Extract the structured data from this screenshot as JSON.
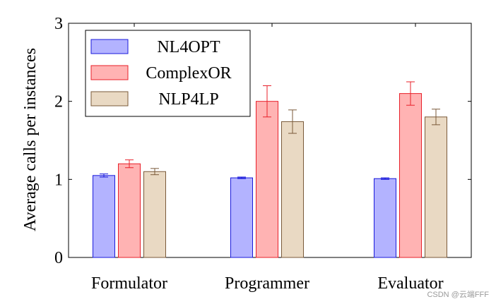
{
  "chart_data": {
    "type": "bar",
    "ylabel": "Average calls per instances",
    "xlabel": "",
    "categories": [
      "Formulator",
      "Programmer",
      "Evaluator"
    ],
    "ylim": [
      0,
      3
    ],
    "yticks": [
      "0",
      "1",
      "2",
      "3"
    ],
    "legend_position": "top-left",
    "grid": false,
    "series": [
      {
        "name": "NL4OPT",
        "values": [
          1.05,
          1.02,
          1.01
        ],
        "errors": [
          0.02,
          0.01,
          0.01
        ],
        "fill": "#b3b3ff",
        "stroke": "#1a1adb"
      },
      {
        "name": "ComplexOR",
        "values": [
          1.2,
          2.0,
          2.1
        ],
        "errors": [
          0.05,
          0.2,
          0.15
        ],
        "fill": "#ffb3b3",
        "stroke": "#e8202a"
      },
      {
        "name": "NLP4LP",
        "values": [
          1.1,
          1.74,
          1.8
        ],
        "errors": [
          0.04,
          0.15,
          0.1
        ],
        "fill": "#e9d9c3",
        "stroke": "#7a5a3a"
      }
    ]
  },
  "watermark": "CSDN @云端FFF"
}
